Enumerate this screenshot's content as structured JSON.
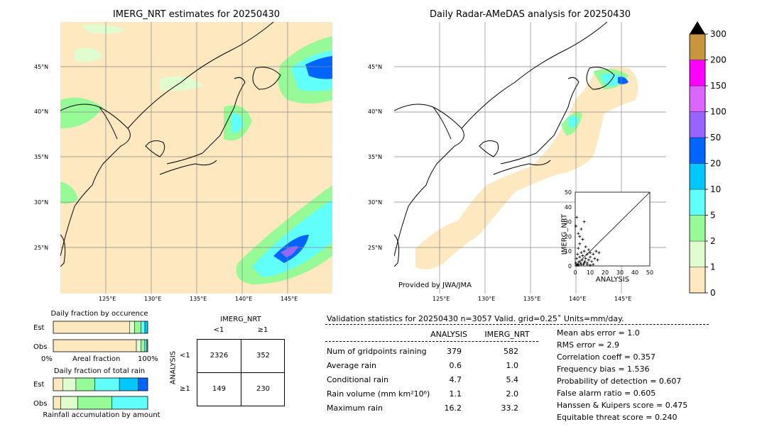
{
  "titles": {
    "left_map": "IMERG_NRT estimates for 20250430",
    "right_map": "Daily Radar-AMeDAS analysis for 20250430",
    "provided_by": "Provided by JWA/JMA"
  },
  "map_axes": {
    "lat_labels": [
      "45°N",
      "40°N",
      "35°N",
      "30°N",
      "25°N"
    ],
    "lon_labels": [
      "125°E",
      "130°E",
      "135°E",
      "140°E",
      "145°E"
    ]
  },
  "colorbar": {
    "levels": [
      "0",
      "1",
      "2",
      "5",
      "10",
      "20",
      "50",
      "100",
      "150",
      "200",
      "300"
    ],
    "colors": [
      "#fee8c0",
      "#e0fdd0",
      "#96fa96",
      "#60fffa",
      "#00c8ff",
      "#0064ff",
      "#9664ff",
      "#dc64ff",
      "#ff00ff",
      "#c8963c",
      "#000000"
    ]
  },
  "scatter": {
    "xlabel": "ANALYSIS",
    "ylabel": "IMERG_NRT",
    "ticks": [
      "0",
      "10",
      "20",
      "30",
      "40",
      "50"
    ]
  },
  "occurrence": {
    "title": "Daily fraction by occurence",
    "row_est": "Est",
    "row_obs": "Obs",
    "axis_left": "0%",
    "axis_mid": "Areal fraction",
    "axis_right": "100%"
  },
  "total_rain": {
    "title": "Daily fraction of total rain",
    "row_est": "Est",
    "row_obs": "Obs",
    "axis_label": "Rainfall accumulation by amount"
  },
  "contingency": {
    "col_header": "IMERG_NRT",
    "col_lt1": "<1",
    "col_ge1": "≥1",
    "row_header": "ANALYSIS",
    "row_lt1": "<1",
    "row_ge1": "≥1",
    "cells": [
      "2326",
      "352",
      "149",
      "230"
    ]
  },
  "validation": {
    "title": "Validation statistics for 20250430  n=3057 Valid. grid=0.25˚ Units=mm/day.",
    "col_analysis": "ANALYSIS",
    "col_imerg": "IMERG_NRT",
    "rows": [
      {
        "label": "Num of gridpoints raining",
        "analysis": "379",
        "imerg": "582"
      },
      {
        "label": "Average rain",
        "analysis": "0.6",
        "imerg": "1.0"
      },
      {
        "label": "Conditional rain",
        "analysis": "4.7",
        "imerg": "5.4"
      },
      {
        "label": "Rain volume (mm km²10⁶)",
        "analysis": "1.1",
        "imerg": "2.0"
      },
      {
        "label": "Maximum rain",
        "analysis": "16.2",
        "imerg": "33.2"
      }
    ],
    "scores": [
      "Mean abs error =    1.0",
      "RMS error =    2.9",
      "Correlation coeff =  0.357",
      "Frequency bias =  1.536",
      "Probability of detection =  0.607",
      "False alarm ratio =  0.605",
      "Hanssen & Kuipers score =  0.475",
      "Equitable threat score =  0.240"
    ]
  },
  "chart_data": [
    {
      "type": "table",
      "title": "Validation statistics for 20250430  n=3057 Valid. grid=0.25˚ Units=mm/day.",
      "columns": [
        "",
        "ANALYSIS",
        "IMERG_NRT"
      ],
      "rows": [
        [
          "Num of gridpoints raining",
          379,
          582
        ],
        [
          "Average rain",
          0.6,
          1.0
        ],
        [
          "Conditional rain",
          4.7,
          5.4
        ],
        [
          "Rain volume (mm km²10⁶)",
          1.1,
          2.0
        ],
        [
          "Maximum rain",
          16.2,
          33.2
        ]
      ]
    },
    {
      "type": "table",
      "columns": [
        "ANALYSIS",
        "IMERG_NRT <1",
        "IMERG_NRT ≥1"
      ],
      "rows": [
        [
          "<1",
          2326,
          352
        ],
        [
          "≥1",
          149,
          230
        ]
      ]
    },
    {
      "type": "bar",
      "title": "Daily fraction by occurence",
      "categories": [
        "Est",
        "Obs"
      ],
      "series": [
        {
          "values": [
            0.81,
            0.88
          ]
        },
        {
          "values": [
            0.05,
            0.05
          ]
        },
        {
          "values": [
            0.07,
            0.04
          ]
        },
        {
          "values": [
            0.04,
            0.02
          ]
        },
        {
          "values": [
            0.03,
            0.01
          ]
        }
      ],
      "stacked": true,
      "xlim": [
        0,
        1
      ]
    },
    {
      "type": "bar",
      "title": "Daily fraction of total rain",
      "categories": [
        "Est",
        "Obs"
      ],
      "series": [
        {
          "values": [
            0.1,
            0.08
          ]
        },
        {
          "values": [
            0.14,
            0.18
          ]
        },
        {
          "values": [
            0.2,
            0.36
          ]
        },
        {
          "values": [
            0.26,
            0.38
          ]
        },
        {
          "values": [
            0.2,
            0.0
          ]
        },
        {
          "values": [
            0.1,
            0.0
          ]
        }
      ],
      "stacked": true,
      "xlim": [
        0,
        1
      ]
    },
    {
      "type": "scatter",
      "xlabel": "ANALYSIS",
      "ylabel": "IMERG_NRT",
      "xlim": [
        0,
        50
      ],
      "ylim": [
        0,
        50
      ],
      "points": [
        [
          0.5,
          2
        ],
        [
          1,
          5
        ],
        [
          1.5,
          8
        ],
        [
          2,
          1
        ],
        [
          2,
          12
        ],
        [
          2.5,
          3
        ],
        [
          3,
          6
        ],
        [
          3,
          15
        ],
        [
          3.5,
          2
        ],
        [
          4,
          9
        ],
        [
          4,
          25
        ],
        [
          4.5,
          4
        ],
        [
          5,
          7
        ],
        [
          5,
          18
        ],
        [
          5.5,
          1
        ],
        [
          6,
          10
        ],
        [
          6,
          30
        ],
        [
          6.5,
          3
        ],
        [
          7,
          5
        ],
        [
          7,
          13
        ],
        [
          8,
          2
        ],
        [
          8,
          8
        ],
        [
          9,
          4
        ],
        [
          9,
          11
        ],
        [
          10,
          6
        ],
        [
          10,
          9
        ],
        [
          11,
          3
        ],
        [
          12,
          8
        ],
        [
          13,
          5
        ],
        [
          14,
          10
        ],
        [
          15,
          4
        ],
        [
          16,
          9
        ],
        [
          1,
          33
        ],
        [
          0.5,
          27
        ],
        [
          2,
          22
        ],
        [
          3,
          20
        ],
        [
          1,
          0.5
        ],
        [
          2,
          0.5
        ],
        [
          4,
          1
        ],
        [
          6,
          2
        ],
        [
          8,
          1
        ],
        [
          10,
          0.5
        ],
        [
          12,
          1
        ]
      ]
    }
  ]
}
